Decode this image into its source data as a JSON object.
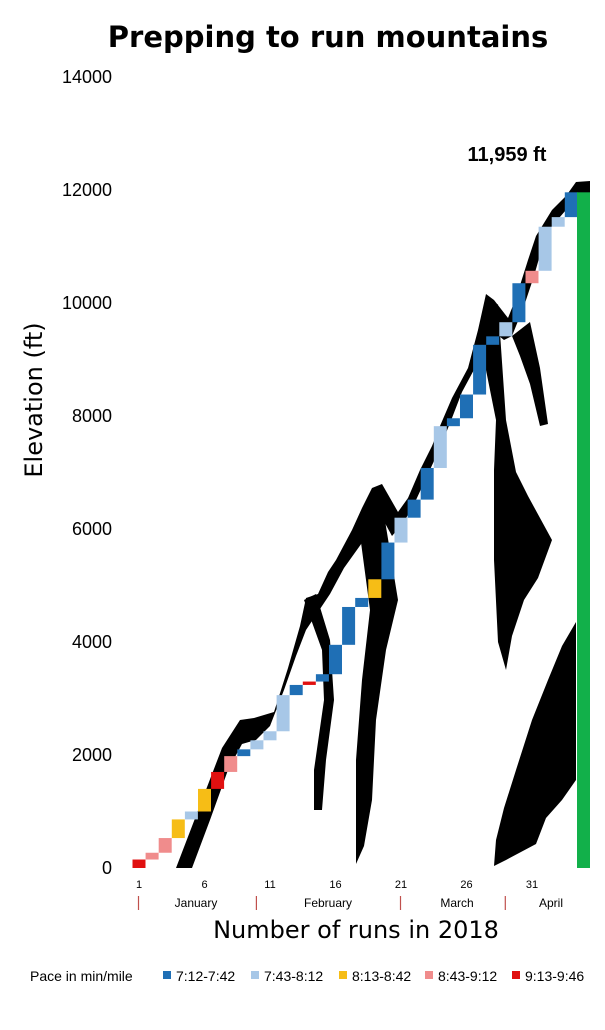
{
  "chart_data": {
    "type": "bar",
    "title": "Prepping to run mountains",
    "xlabel": "Number of runs in 2018",
    "ylabel": "Elevation (ft)",
    "ylim": [
      0,
      14000
    ],
    "yticks": [
      "0",
      "2000",
      "4000",
      "6000",
      "8000",
      "10000",
      "12000",
      "14000"
    ],
    "xticks": [
      "1",
      "6",
      "11",
      "16",
      "21",
      "26",
      "31"
    ],
    "months": [
      "January",
      "February",
      "March",
      "April"
    ],
    "annotation": "11,959 ft",
    "final_value": 11959,
    "legend": {
      "title": "Pace in min/mile",
      "placement": "bottom",
      "entries": [
        {
          "label": "7:12-7:42",
          "color": "#1f6fb5"
        },
        {
          "label": "7:43-8:12",
          "color": "#a7c7e7"
        },
        {
          "label": "8:13-8:42",
          "color": "#f6bd16"
        },
        {
          "label": "8:43-9:12",
          "color": "#f08c8c"
        },
        {
          "label": "9:13-9:46",
          "color": "#e01010"
        }
      ]
    },
    "runs": [
      {
        "run": 1,
        "start": 0,
        "end": 150,
        "pace": 4
      },
      {
        "run": 2,
        "start": 150,
        "end": 270,
        "pace": 3
      },
      {
        "run": 3,
        "start": 270,
        "end": 530,
        "pace": 3
      },
      {
        "run": 4,
        "start": 530,
        "end": 860,
        "pace": 2
      },
      {
        "run": 5,
        "start": 860,
        "end": 1000,
        "pace": 1
      },
      {
        "run": 6,
        "start": 1000,
        "end": 1400,
        "pace": 2
      },
      {
        "run": 7,
        "start": 1400,
        "end": 1700,
        "pace": 4
      },
      {
        "run": 8,
        "start": 1700,
        "end": 1980,
        "pace": 3
      },
      {
        "run": 9,
        "start": 1980,
        "end": 2100,
        "pace": 0
      },
      {
        "run": 10,
        "start": 2100,
        "end": 2260,
        "pace": 1
      },
      {
        "run": 11,
        "start": 2260,
        "end": 2420,
        "pace": 1
      },
      {
        "run": 12,
        "start": 2420,
        "end": 3060,
        "pace": 1
      },
      {
        "run": 13,
        "start": 3060,
        "end": 3240,
        "pace": 0
      },
      {
        "run": 14,
        "start": 3240,
        "end": 3300,
        "pace": 4
      },
      {
        "run": 15,
        "start": 3300,
        "end": 3430,
        "pace": 0
      },
      {
        "run": 16,
        "start": 3430,
        "end": 3950,
        "pace": 0
      },
      {
        "run": 17,
        "start": 3950,
        "end": 4620,
        "pace": 0
      },
      {
        "run": 18,
        "start": 4620,
        "end": 4780,
        "pace": 0
      },
      {
        "run": 19,
        "start": 4780,
        "end": 5110,
        "pace": 2
      },
      {
        "run": 20,
        "start": 5110,
        "end": 5760,
        "pace": 0
      },
      {
        "run": 21,
        "start": 5760,
        "end": 6200,
        "pace": 1
      },
      {
        "run": 22,
        "start": 6200,
        "end": 6520,
        "pace": 0
      },
      {
        "run": 23,
        "start": 6520,
        "end": 7080,
        "pace": 0
      },
      {
        "run": 24,
        "start": 7080,
        "end": 7820,
        "pace": 1
      },
      {
        "run": 25,
        "start": 7820,
        "end": 7960,
        "pace": 0
      },
      {
        "run": 26,
        "start": 7960,
        "end": 8380,
        "pace": 0
      },
      {
        "run": 27,
        "start": 8380,
        "end": 9260,
        "pace": 0
      },
      {
        "run": 28,
        "start": 9260,
        "end": 9410,
        "pace": 0
      },
      {
        "run": 29,
        "start": 9410,
        "end": 9660,
        "pace": 1
      },
      {
        "run": 30,
        "start": 9660,
        "end": 10350,
        "pace": 0
      },
      {
        "run": 31,
        "start": 10350,
        "end": 10570,
        "pace": 3
      },
      {
        "run": 32,
        "start": 10570,
        "end": 11350,
        "pace": 1
      },
      {
        "run": 33,
        "start": 11350,
        "end": 11520,
        "pace": 1
      },
      {
        "run": 34,
        "start": 11520,
        "end": 11959,
        "pace": 0
      }
    ]
  }
}
